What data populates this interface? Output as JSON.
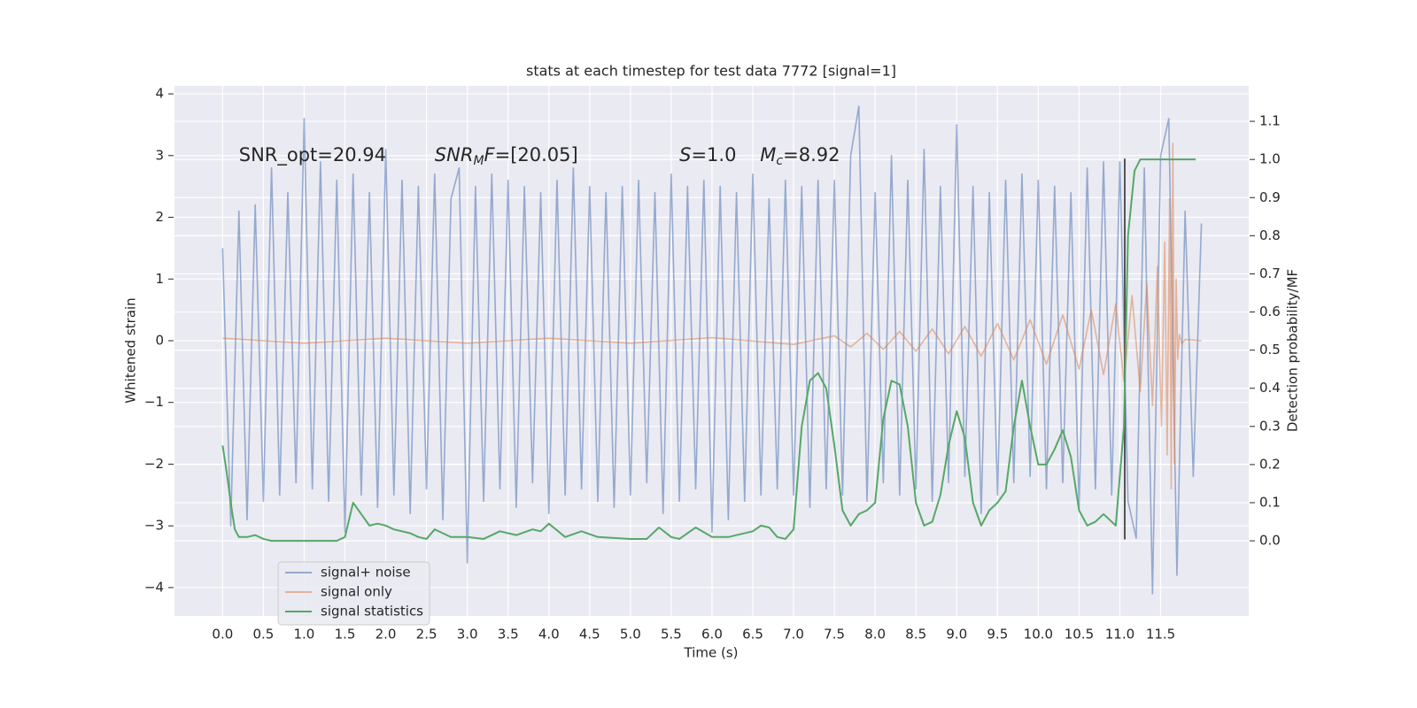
{
  "chart_data": {
    "type": "line",
    "title": "stats at each timestep for test data 7772 [signal=1]",
    "xlabel": "Time (s)",
    "ylabel": "Whitened strain",
    "y2label": "Detection probability/MF",
    "xlim": [
      -0.59,
      12.58
    ],
    "ylim": [
      -4.46,
      4.13
    ],
    "y2lim": [
      -0.197,
      1.193
    ],
    "xticks": [
      {
        "value": 0,
        "label": "0.0"
      },
      {
        "value": 0.5,
        "label": "0.5"
      },
      {
        "value": 1,
        "label": "1.0"
      },
      {
        "value": 1.5,
        "label": "1.5"
      },
      {
        "value": 2,
        "label": "2.0"
      },
      {
        "value": 2.5,
        "label": "2.5"
      },
      {
        "value": 3,
        "label": "3.0"
      },
      {
        "value": 3.5,
        "label": "3.5"
      },
      {
        "value": 4,
        "label": "4.0"
      },
      {
        "value": 4.5,
        "label": "4.5"
      },
      {
        "value": 5,
        "label": "5.0"
      },
      {
        "value": 5.5,
        "label": "5.5"
      },
      {
        "value": 6,
        "label": "6.0"
      },
      {
        "value": 6.5,
        "label": "6.5"
      },
      {
        "value": 7,
        "label": "7.0"
      },
      {
        "value": 7.5,
        "label": "7.5"
      },
      {
        "value": 8,
        "label": "8.0"
      },
      {
        "value": 8.5,
        "label": "8.5"
      },
      {
        "value": 9,
        "label": "9.0"
      },
      {
        "value": 9.5,
        "label": "9.5"
      },
      {
        "value": 10,
        "label": "10.0"
      },
      {
        "value": 10.5,
        "label": "10.5"
      },
      {
        "value": 11,
        "label": "11.0"
      },
      {
        "value": 11.5,
        "label": "11.5"
      }
    ],
    "yticks": [
      {
        "value": -4,
        "label": "−4"
      },
      {
        "value": -3,
        "label": "−3"
      },
      {
        "value": -2,
        "label": "−2"
      },
      {
        "value": -1,
        "label": "−1"
      },
      0,
      1,
      2,
      3,
      4
    ],
    "y2ticks": [
      {
        "value": 0,
        "label": "0.0"
      },
      {
        "value": 0.1,
        "label": "0.1"
      },
      {
        "value": 0.2,
        "label": "0.2"
      },
      {
        "value": 0.3,
        "label": "0.3"
      },
      {
        "value": 0.4,
        "label": "0.4"
      },
      {
        "value": 0.5,
        "label": "0.5"
      },
      {
        "value": 0.6,
        "label": "0.6"
      },
      {
        "value": 0.7,
        "label": "0.7"
      },
      {
        "value": 0.8,
        "label": "0.8"
      },
      {
        "value": 0.9,
        "label": "0.9"
      },
      {
        "value": 1,
        "label": "1.0"
      },
      {
        "value": 1.1,
        "label": "1.1"
      }
    ],
    "grid": true,
    "series": [
      {
        "name": "signal+ noise",
        "color": "#4c72b0",
        "x": [
          0,
          0.1,
          0.2,
          0.3,
          0.4,
          0.5,
          0.6,
          0.7,
          0.8,
          0.9,
          1,
          1.1,
          1.2,
          1.3,
          1.4,
          1.5,
          1.6,
          1.7,
          1.8,
          1.9,
          2,
          2.1,
          2.2,
          2.3,
          2.4,
          2.5,
          2.6,
          2.7,
          2.8,
          2.9,
          3,
          3.1,
          3.2,
          3.3,
          3.4,
          3.5,
          3.6,
          3.7,
          3.8,
          3.9,
          4,
          4.1,
          4.2,
          4.3,
          4.4,
          4.5,
          4.6,
          4.7,
          4.8,
          4.9,
          5,
          5.1,
          5.2,
          5.3,
          5.4,
          5.5,
          5.6,
          5.7,
          5.8,
          5.9,
          6,
          6.1,
          6.2,
          6.3,
          6.4,
          6.5,
          6.6,
          6.7,
          6.8,
          6.9,
          7,
          7.1,
          7.2,
          7.3,
          7.4,
          7.5,
          7.6,
          7.7,
          7.8,
          7.9,
          8,
          8.1,
          8.2,
          8.3,
          8.4,
          8.5,
          8.6,
          8.7,
          8.8,
          8.9,
          9,
          9.1,
          9.2,
          9.3,
          9.4,
          9.5,
          9.6,
          9.7,
          9.8,
          9.9,
          10,
          10.1,
          10.2,
          10.3,
          10.4,
          10.5,
          10.6,
          10.7,
          10.8,
          10.9,
          11,
          11.1,
          11.2,
          11.3,
          11.4,
          11.5,
          11.6,
          11.7,
          11.8,
          11.9,
          12
        ],
        "values": [
          1.5,
          -3.0,
          2.1,
          -2.9,
          2.2,
          -2.6,
          2.8,
          -2.5,
          2.4,
          -2.3,
          3.6,
          -2.4,
          2.9,
          -2.6,
          2.6,
          -3.1,
          2.7,
          -2.5,
          2.4,
          -2.7,
          3.1,
          -2.5,
          2.6,
          -2.8,
          2.5,
          -2.4,
          2.7,
          -2.9,
          2.3,
          2.8,
          -3.6,
          2.5,
          -2.6,
          2.7,
          -2.4,
          2.6,
          -2.7,
          2.5,
          -2.3,
          2.4,
          -2.8,
          2.6,
          -2.5,
          2.8,
          -2.4,
          2.5,
          -2.6,
          2.4,
          -2.7,
          2.5,
          -2.5,
          2.6,
          -2.3,
          2.4,
          -2.8,
          2.7,
          -2.6,
          2.5,
          -2.4,
          2.6,
          -3.1,
          2.5,
          -2.9,
          2.4,
          -2.6,
          2.7,
          -2.5,
          2.3,
          -2.4,
          2.6,
          -2.5,
          2.5,
          -2.7,
          2.6,
          -2.4,
          2.6,
          -2.5,
          3.0,
          3.8,
          -2.6,
          2.4,
          -2.3,
          3.0,
          -2.5,
          2.6,
          -2.4,
          3.1,
          -2.6,
          2.5,
          -2.3,
          3.5,
          -2.2,
          2.5,
          -2.8,
          2.4,
          -2.5,
          2.6,
          -2.3,
          2.7,
          -2.2,
          2.6,
          -2.4,
          2.5,
          -2.3,
          2.4,
          -2.7,
          2.8,
          -2.4,
          2.9,
          -2.5,
          2.9,
          -2.6,
          -3.2,
          2.8,
          -4.1,
          3.0,
          3.6,
          -3.8,
          2.1,
          -2.2,
          1.9
        ]
      },
      {
        "name": "signal only",
        "color": "#dd8452",
        "x": [
          0,
          1,
          2,
          3,
          4,
          5,
          6,
          7,
          7.5,
          7.7,
          7.9,
          8.1,
          8.3,
          8.5,
          8.7,
          8.9,
          9.1,
          9.3,
          9.5,
          9.7,
          9.9,
          10.1,
          10.3,
          10.5,
          10.65,
          10.8,
          10.95,
          11.05,
          11.15,
          11.25,
          11.33,
          11.4,
          11.46,
          11.51,
          11.55,
          11.58,
          11.61,
          11.63,
          11.65,
          11.67,
          11.69,
          11.71,
          11.73,
          11.76,
          11.8,
          12
        ],
        "values": [
          0.04,
          -0.04,
          0.04,
          -0.04,
          0.04,
          -0.04,
          0.05,
          -0.06,
          0.08,
          -0.1,
          0.12,
          -0.14,
          0.15,
          -0.17,
          0.19,
          -0.21,
          0.23,
          -0.25,
          0.28,
          -0.31,
          0.34,
          -0.38,
          0.42,
          -0.46,
          0.5,
          -0.55,
          0.6,
          -0.66,
          0.73,
          -0.82,
          0.93,
          -1.05,
          1.2,
          -1.38,
          1.6,
          -1.85,
          2.3,
          -2.4,
          3.2,
          -2.0,
          1.0,
          -0.3,
          0.1,
          -0.05,
          0.02,
          0.0
        ]
      },
      {
        "name": "signal statistics",
        "color": "#55a868",
        "axis": "y2",
        "x": [
          0,
          0.05,
          0.1,
          0.15,
          0.2,
          0.3,
          0.4,
          0.5,
          0.6,
          0.8,
          1,
          1.2,
          1.4,
          1.5,
          1.6,
          1.7,
          1.8,
          1.9,
          2,
          2.1,
          2.3,
          2.4,
          2.5,
          2.6,
          2.7,
          2.8,
          3,
          3.2,
          3.4,
          3.6,
          3.8,
          3.9,
          4,
          4.2,
          4.4,
          4.6,
          5,
          5.2,
          5.35,
          5.5,
          5.6,
          5.8,
          6,
          6.2,
          6.5,
          6.6,
          6.7,
          6.8,
          6.9,
          7,
          7.1,
          7.2,
          7.3,
          7.4,
          7.5,
          7.6,
          7.7,
          7.8,
          7.9,
          8,
          8.1,
          8.2,
          8.3,
          8.4,
          8.5,
          8.6,
          8.7,
          8.8,
          8.9,
          9,
          9.1,
          9.2,
          9.3,
          9.4,
          9.5,
          9.6,
          9.7,
          9.8,
          9.9,
          10,
          10.1,
          10.2,
          10.3,
          10.4,
          10.5,
          10.6,
          10.7,
          10.8,
          10.95,
          11.05,
          11.1,
          11.18,
          11.25,
          11.5,
          11.7,
          11.93
        ],
        "values": [
          0.25,
          0.18,
          0.1,
          0.03,
          0.01,
          0.01,
          0.015,
          0.005,
          0.0,
          0.0,
          0.0,
          0.0,
          0.0,
          0.01,
          0.1,
          0.07,
          0.04,
          0.045,
          0.04,
          0.03,
          0.02,
          0.01,
          0.005,
          0.03,
          0.02,
          0.01,
          0.01,
          0.005,
          0.025,
          0.015,
          0.03,
          0.025,
          0.045,
          0.01,
          0.025,
          0.01,
          0.005,
          0.005,
          0.035,
          0.01,
          0.005,
          0.035,
          0.01,
          0.01,
          0.025,
          0.04,
          0.035,
          0.01,
          0.005,
          0.03,
          0.3,
          0.42,
          0.44,
          0.4,
          0.25,
          0.08,
          0.04,
          0.07,
          0.08,
          0.1,
          0.32,
          0.42,
          0.41,
          0.3,
          0.1,
          0.04,
          0.05,
          0.12,
          0.25,
          0.34,
          0.27,
          0.1,
          0.04,
          0.08,
          0.1,
          0.13,
          0.3,
          0.42,
          0.3,
          0.2,
          0.2,
          0.24,
          0.29,
          0.22,
          0.08,
          0.04,
          0.05,
          0.07,
          0.04,
          0.3,
          0.8,
          0.97,
          1.0,
          1.0,
          1.0,
          1.0
        ]
      }
    ],
    "vline": {
      "x": 11.06,
      "y": [
        -3.22,
        2.95
      ],
      "color": "#555555"
    },
    "annotations": [
      [
        {
          "t": "SNR_opt=20.94"
        }
      ],
      [
        {
          "t": "SNR",
          "style": "italic"
        },
        {
          "t": "M",
          "style": "sub"
        },
        {
          "t": "F",
          "style": "italic"
        },
        {
          "t": "=[20.05]"
        }
      ],
      [
        {
          "t": "S",
          "style": "italic"
        },
        {
          "t": "=1.0"
        }
      ],
      [
        {
          "t": "M",
          "style": "italic"
        },
        {
          "t": "c",
          "style": "sub"
        },
        {
          "t": "=8.92"
        }
      ]
    ]
  }
}
